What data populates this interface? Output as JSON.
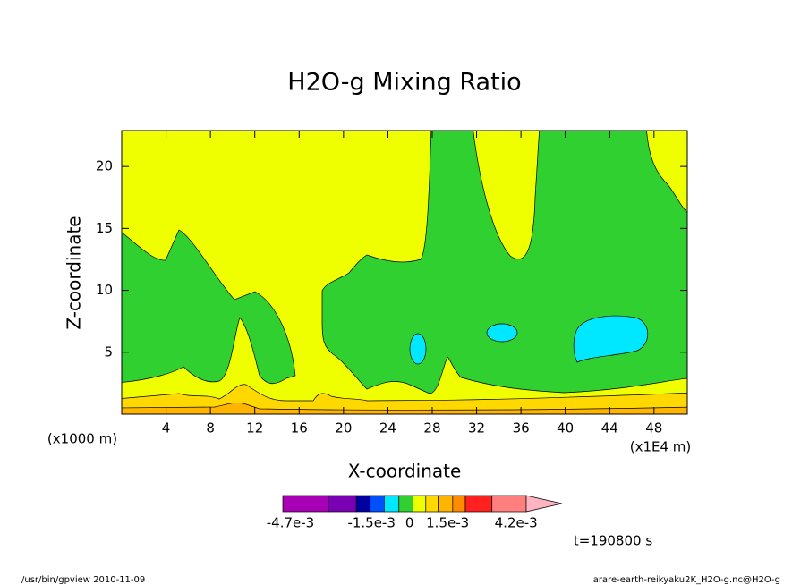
{
  "chart_data": {
    "type": "contour",
    "title": "H2O-g Mixing Ratio",
    "xlabel": "X-coordinate",
    "ylabel": "Z-coordinate",
    "x_scale_label": "(x1000 m)",
    "x_scale_label2": "(x1E4 m)",
    "xlim": [
      0,
      51
    ],
    "xticks": [
      4,
      8,
      12,
      16,
      20,
      24,
      28,
      32,
      36,
      40,
      44,
      48
    ],
    "ylim": [
      0,
      22.9
    ],
    "yticks": [
      5,
      10,
      15,
      20
    ],
    "colorbar": {
      "colors": [
        "#a800b4",
        "#7a00b4",
        "#0000a0",
        "#0050ff",
        "#00e8ff",
        "#30d030",
        "#f0ff00",
        "#ffd800",
        "#ffb400",
        "#ff8c00",
        "#ff2020",
        "#ff7e7e"
      ],
      "over_color": "#ffb4c4",
      "levels": [
        -0.005,
        -0.0032,
        -0.0021,
        -0.00155,
        -0.001,
        -0.00042,
        0.00014,
        0.00064,
        0.00113,
        0.0017,
        0.0022,
        0.00325,
        0.0046
      ],
      "lim": [
        -0.005,
        0.0046
      ],
      "ticks": [
        {
          "value": -0.0047,
          "label": "-4.7e-3"
        },
        {
          "value": -0.0015,
          "label": "-1.5e-3"
        },
        0,
        {
          "value": 0.0015,
          "label": "1.5e-3"
        },
        {
          "value": 0.0042,
          "label": "4.2e-3"
        }
      ]
    },
    "time_label": "t=190800 s",
    "footer_left": "/usr/bin/gpview  2010-11-09",
    "footer_right": "arare-earth-reikyaku2K_H2O-g.nc@H2O-g"
  }
}
